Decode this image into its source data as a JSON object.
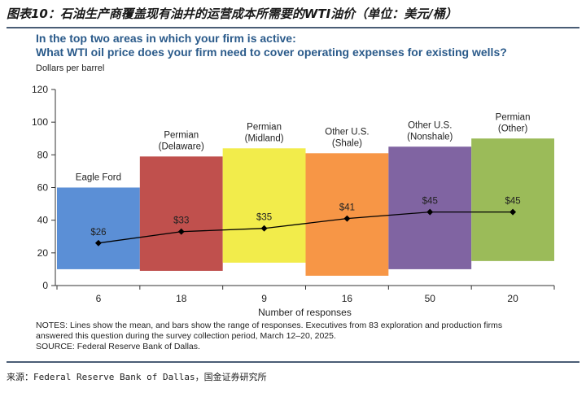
{
  "figure_title": "图表10：石油生产商覆盖现有油井的运营成本所需要的WTI油价（单位：美元/桶）",
  "chart_data": {
    "type": "bar",
    "title_line1": "In the top two areas in which your firm is active:",
    "title_line2": "What WTI oil price does your firm need to cover operating expenses for existing wells?",
    "ylabel": "Dollars per barrel",
    "xlabel": "Number of responses",
    "ylim": [
      0,
      120
    ],
    "yticks": [
      "0",
      "20",
      "40",
      "60",
      "80",
      "100",
      "120"
    ],
    "categories": [
      "Eagle Ford",
      "Permian (Delaware)",
      "Permian (Midland)",
      "Other U.S. (Shale)",
      "Other U.S. (Nonshale)",
      "Permian (Other)"
    ],
    "label_lines": [
      [
        "Eagle Ford"
      ],
      [
        "Permian",
        "(Delaware)"
      ],
      [
        "Permian",
        "(Midland)"
      ],
      [
        "Other U.S.",
        "(Shale)"
      ],
      [
        "Other U.S.",
        "(Nonshale)"
      ],
      [
        "Permian",
        "(Other)"
      ]
    ],
    "responses": [
      "6",
      "18",
      "9",
      "16",
      "50",
      "20"
    ],
    "range_low": [
      10,
      9,
      14,
      6,
      10,
      15
    ],
    "range_high": [
      60,
      79,
      84,
      81,
      85,
      90
    ],
    "mean": [
      26,
      33,
      35,
      41,
      45,
      45
    ],
    "mean_labels": [
      "$26",
      "$33",
      "$35",
      "$41",
      "$45",
      "$45"
    ],
    "colors": [
      "#5b8fd6",
      "#c0504d",
      "#f2ec4b",
      "#f79646",
      "#8064a2",
      "#9bbb59"
    ],
    "legend": "none",
    "grid": false
  },
  "notes": {
    "line1": "NOTES: Lines show the mean, and bars show the range of responses. Executives from 83 exploration and production firms",
    "line2": "answered this question during the survey collection period, March 12–20, 2025.",
    "line3": "SOURCE: Federal Reserve Bank of Dallas."
  },
  "source": "来源：Federal Reserve Bank of Dallas，国金证券研究所"
}
